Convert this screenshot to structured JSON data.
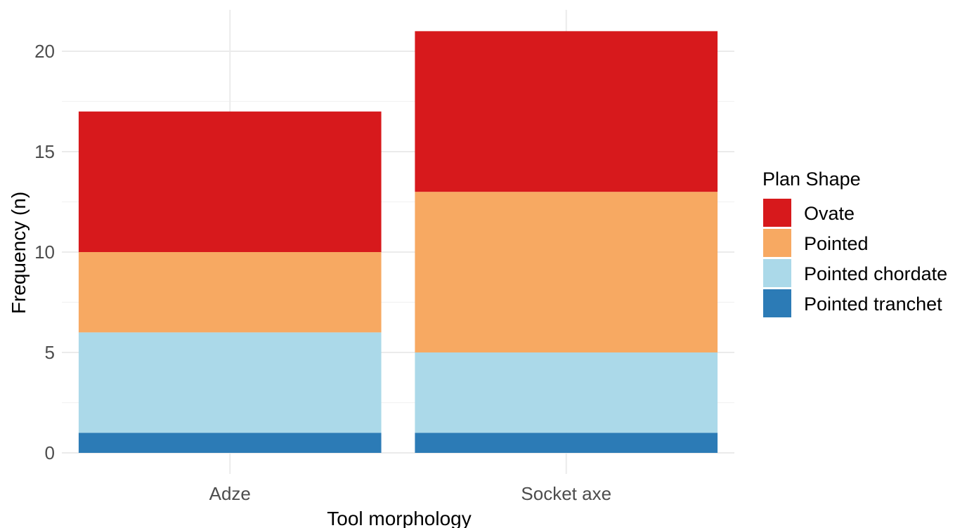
{
  "chart_data": {
    "type": "bar",
    "stacked": true,
    "categories": [
      "Adze",
      "Socket axe"
    ],
    "series": [
      {
        "name": "Pointed tranchet",
        "values": [
          1,
          1
        ],
        "color": "#2c7bb6"
      },
      {
        "name": "Pointed chordate",
        "values": [
          5,
          4
        ],
        "color": "#abd9e9"
      },
      {
        "name": "Pointed",
        "values": [
          4,
          8
        ],
        "color": "#f7a962"
      },
      {
        "name": "Ovate",
        "values": [
          7,
          8
        ],
        "color": "#d7191c"
      }
    ],
    "xlabel": "Tool morphology",
    "ylabel": "Frequency (n)",
    "ylim": [
      0,
      21
    ],
    "yticks": [
      0,
      5,
      10,
      15,
      20
    ],
    "ytick_labels": [
      "0",
      "5",
      "10",
      "15",
      "20"
    ],
    "grid": true,
    "legend": {
      "title": "Plan Shape",
      "position": "right",
      "entries": [
        "Ovate",
        "Pointed",
        "Pointed chordate",
        "Pointed tranchet"
      ]
    }
  }
}
